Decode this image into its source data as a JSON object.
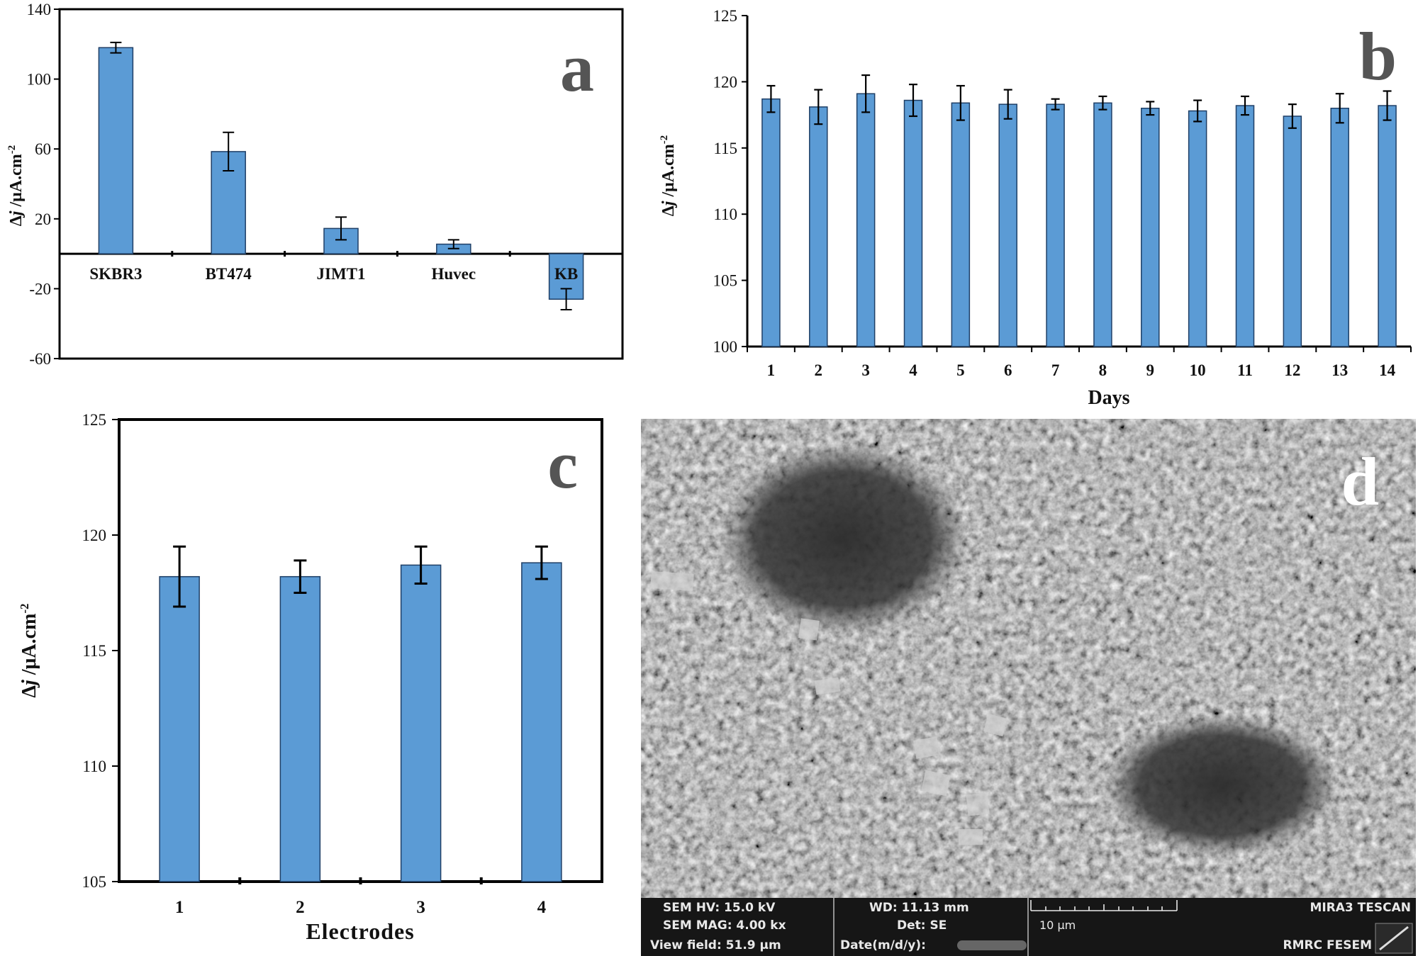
{
  "colors": {
    "bar": "#5b9bd5",
    "bar_stroke": "#1f3f66",
    "axis": "#000000",
    "panel_label": "#555555"
  },
  "panels": {
    "a": {
      "label": "a",
      "ylabel_delta": "Δ",
      "ylabel_j": "j",
      "ylabel_unit": " /μA.cm",
      "ylabel_sup": "-2"
    },
    "b": {
      "label": "b",
      "ylabel_delta": "Δ",
      "ylabel_j": "j",
      "ylabel_unit": " /μA.cm",
      "ylabel_sup": "-2",
      "xlabel": "Days"
    },
    "c": {
      "label": "c",
      "ylabel_delta": "Δ",
      "ylabel_j": "j",
      "ylabel_unit": " /μA.cm",
      "ylabel_sup": "-2",
      "xlabel": "Electrodes"
    },
    "d": {
      "label": "d"
    }
  },
  "chart_data": [
    {
      "type": "bar",
      "panel": "a",
      "categories": [
        "SKBR3",
        "BT474",
        "JIMT1",
        "Huvec",
        "KB"
      ],
      "values": [
        118,
        58.5,
        14.5,
        5.5,
        -26
      ],
      "errors": [
        3,
        11,
        6.5,
        2.5,
        6
      ],
      "ylim": [
        -60,
        140
      ],
      "yticks": [
        -60,
        -20,
        20,
        60,
        100,
        140
      ],
      "xlabel": "",
      "ylabel": "Δj /μA.cm-2",
      "grid": false
    },
    {
      "type": "bar",
      "panel": "b",
      "categories": [
        "1",
        "2",
        "3",
        "4",
        "5",
        "6",
        "7",
        "8",
        "9",
        "10",
        "11",
        "12",
        "13",
        "14"
      ],
      "values": [
        118.7,
        118.1,
        119.1,
        118.6,
        118.4,
        118.3,
        118.3,
        118.4,
        118.0,
        117.8,
        118.2,
        117.4,
        118.0,
        118.2
      ],
      "errors": [
        1.0,
        1.3,
        1.4,
        1.2,
        1.3,
        1.1,
        0.4,
        0.5,
        0.5,
        0.8,
        0.7,
        0.9,
        1.1,
        1.1
      ],
      "ylim": [
        100,
        125
      ],
      "yticks": [
        100,
        105,
        110,
        115,
        120,
        125
      ],
      "xlabel": "Days",
      "ylabel": "Δj /μA.cm-2",
      "grid": false
    },
    {
      "type": "bar",
      "panel": "c",
      "categories": [
        "1",
        "2",
        "3",
        "4"
      ],
      "values": [
        118.2,
        118.2,
        118.7,
        118.8
      ],
      "errors": [
        1.3,
        0.7,
        0.8,
        0.7
      ],
      "ylim": [
        105,
        125
      ],
      "yticks": [
        105,
        110,
        115,
        120,
        125
      ],
      "xlabel": "Electrodes",
      "ylabel": "Δj /μA.cm-2",
      "grid": false
    }
  ],
  "sem": {
    "hv": "SEM HV: 15.0 kV",
    "mag": "SEM MAG: 4.00 kx",
    "view": "View field: 51.9 μm",
    "wd": "WD: 11.13 mm",
    "det": "Det: SE",
    "date": "Date(m/d/y):",
    "scale": "10 μm",
    "brand": "MIRA3 TESCAN",
    "lab": "RMRC  FESEM"
  }
}
